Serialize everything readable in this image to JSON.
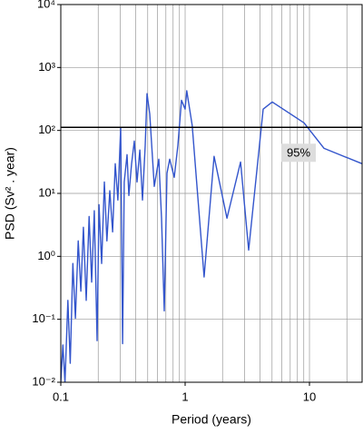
{
  "chart_data": {
    "type": "line",
    "xlabel": "Period (years)",
    "ylabel": "PSD (Sv² . year)",
    "xscale": "log",
    "yscale": "log",
    "grid": true,
    "xlim": [
      0.1,
      26.5
    ],
    "ylim": [
      0.01,
      10000
    ],
    "xticks": [
      0.1,
      1,
      10
    ],
    "xminor_ticks": [
      0.2,
      0.3,
      0.4,
      0.5,
      0.6,
      0.7,
      0.8,
      0.9,
      2,
      3,
      4,
      5,
      6,
      7,
      8,
      9,
      20
    ],
    "yticks": [
      {
        "value": 0.01,
        "label": "10⁻²"
      },
      {
        "value": 0.1,
        "label": "10⁻¹"
      },
      {
        "value": 1,
        "label": "10⁰"
      },
      {
        "value": 10,
        "label": "10¹"
      },
      {
        "value": 100,
        "label": "10²"
      },
      {
        "value": 1000,
        "label": "10³"
      },
      {
        "value": 10000,
        "label": "10⁴"
      }
    ],
    "threshold": {
      "value": 112,
      "label": "95%"
    },
    "x": [
      0.1,
      0.104,
      0.108,
      0.114,
      0.119,
      0.125,
      0.131,
      0.138,
      0.145,
      0.152,
      0.16,
      0.169,
      0.177,
      0.186,
      0.196,
      0.203,
      0.213,
      0.224,
      0.235,
      0.248,
      0.261,
      0.274,
      0.288,
      0.303,
      0.314,
      0.324,
      0.341,
      0.353,
      0.371,
      0.39,
      0.41,
      0.432,
      0.454,
      0.477,
      0.494,
      0.519,
      0.565,
      0.614,
      0.646,
      0.679,
      0.715,
      0.751,
      0.817,
      0.874,
      0.935,
      1.0,
      1.03,
      1.14,
      1.42,
      1.71,
      2.17,
      2.79,
      3.24,
      4.24,
      5.02,
      9.04,
      13.1,
      26.5
    ],
    "series": [
      {
        "color": "#3355cc",
        "values": [
          0.01,
          0.039,
          0.01,
          0.2,
          0.02,
          0.77,
          0.104,
          1.76,
          0.28,
          2.9,
          0.2,
          4.3,
          0.39,
          5.3,
          0.0457,
          6.6,
          0.77,
          15.2,
          1.76,
          11,
          2.45,
          29.6,
          7.85,
          112,
          0.041,
          15.2,
          41.3,
          9.27,
          29.6,
          67.9,
          15.2,
          48.9,
          7.85,
          57.6,
          383,
          184,
          12.9,
          35,
          4.04,
          0.136,
          21,
          35,
          18,
          57.6,
          302,
          218,
          426,
          120,
          0.47,
          38.8,
          4.04,
          31.6,
          1.26,
          218,
          283,
          132,
          52,
          29.6
        ]
      }
    ]
  }
}
